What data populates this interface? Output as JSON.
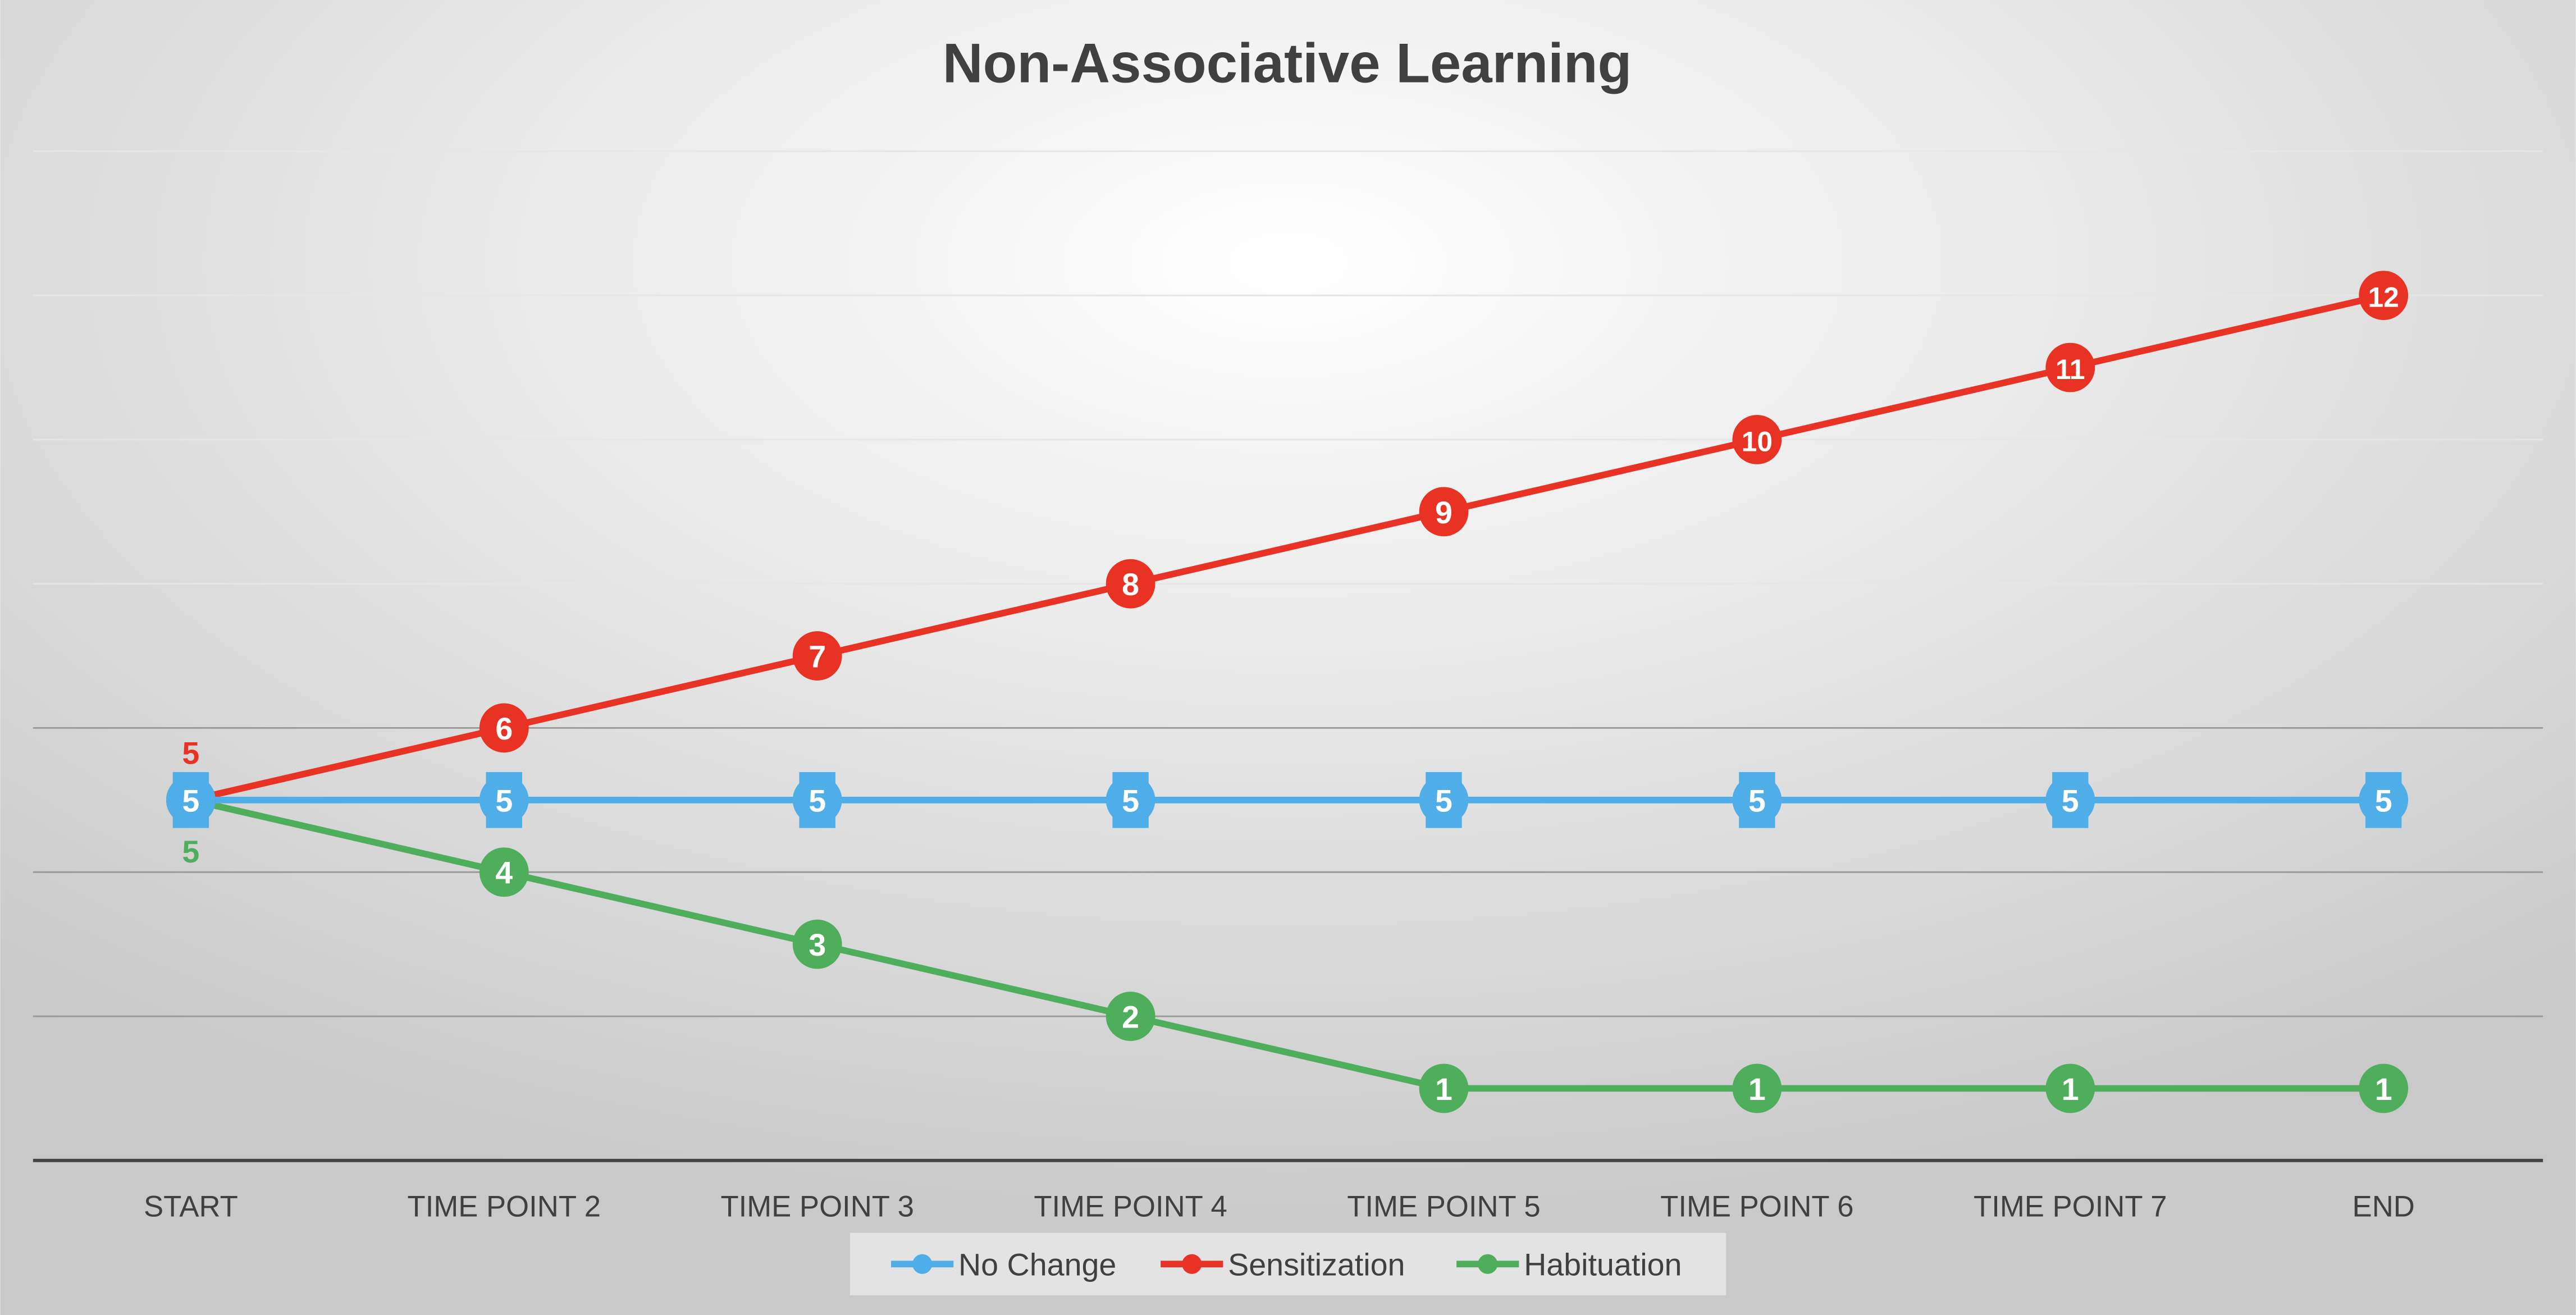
{
  "chart_data": {
    "type": "line",
    "title": "Non-Associative Learning",
    "categories": [
      "START",
      "TIME POINT 2",
      "TIME POINT 3",
      "TIME POINT 4",
      "TIME POINT 5",
      "TIME POINT 6",
      "TIME POINT 7",
      "END"
    ],
    "series": [
      {
        "name": "No Change",
        "color": "#4faee8",
        "values": [
          5,
          5,
          5,
          5,
          5,
          5,
          5,
          5
        ]
      },
      {
        "name": "Sensitization",
        "color": "#e83324",
        "values": [
          5,
          6,
          7,
          8,
          9,
          10,
          11,
          12
        ]
      },
      {
        "name": "Habituation",
        "color": "#4fae5c",
        "values": [
          5,
          4,
          3,
          2,
          1,
          1,
          1,
          1
        ]
      }
    ],
    "ylim": [
      0,
      14
    ],
    "y_gridline_step": 2,
    "y_axis_labels_shown": false,
    "grid": true,
    "data_labels": true,
    "legend_position": "bottom"
  }
}
